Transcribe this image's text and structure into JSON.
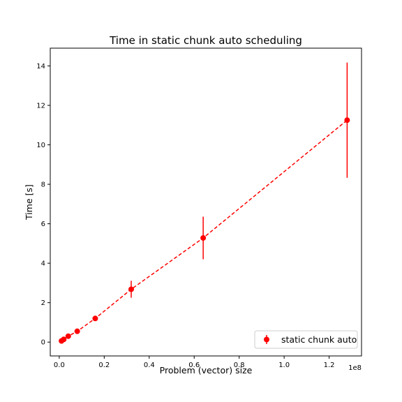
{
  "chart_data": {
    "type": "scatter",
    "title": "Time in static chunk auto scheduling",
    "xlabel": "Problem (vector) size",
    "ylabel": "Time [s]",
    "x_offset_label": "1e8",
    "xlim": [
      -4000000,
      134400000
    ],
    "ylim": [
      -0.7,
      14.9
    ],
    "x_ticks": [
      0,
      20000000,
      40000000,
      60000000,
      80000000,
      100000000,
      120000000
    ],
    "x_tick_labels": [
      "0.0",
      "0.2",
      "0.4",
      "0.6",
      "0.8",
      "1.0",
      "1.2"
    ],
    "y_ticks": [
      0,
      2,
      4,
      6,
      8,
      10,
      12,
      14
    ],
    "y_tick_labels": [
      "0",
      "2",
      "4",
      "6",
      "8",
      "10",
      "12",
      "14"
    ],
    "grid": false,
    "legend_position": "lower right",
    "series": [
      {
        "name": "static chunk auto",
        "color": "#ff0000",
        "line_style": "dashed",
        "marker": "circle",
        "x": [
          1000000,
          2000000,
          4000000,
          8000000,
          16000000,
          32000000,
          64000000,
          128000000
        ],
        "y": [
          0.06,
          0.14,
          0.3,
          0.55,
          1.2,
          2.68,
          5.28,
          11.25
        ],
        "yerr": [
          0.02,
          0.03,
          0.05,
          0.07,
          0.09,
          0.43,
          1.08,
          2.92
        ]
      }
    ]
  }
}
